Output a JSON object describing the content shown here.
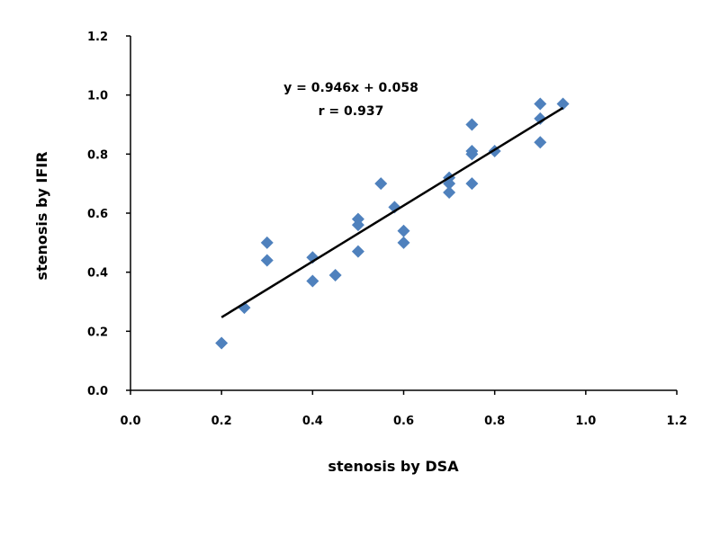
{
  "chart_data": {
    "type": "scatter",
    "title": "",
    "xlabel": "stenosis by DSA",
    "ylabel": "stenosis by IFIR",
    "xlim": [
      0,
      1.2
    ],
    "ylim": [
      0,
      1.2
    ],
    "xticks": [
      "0.0",
      "0.2",
      "0.4",
      "0.6",
      "0.8",
      "1.0",
      "1.2"
    ],
    "yticks": [
      "0.0",
      "0.2",
      "0.4",
      "0.6",
      "0.8",
      "1.0",
      "1.2"
    ],
    "grid": false,
    "marker_color": "#4f81bd",
    "points": [
      [
        0.2,
        0.16
      ],
      [
        0.25,
        0.28
      ],
      [
        0.3,
        0.5
      ],
      [
        0.3,
        0.44
      ],
      [
        0.4,
        0.45
      ],
      [
        0.4,
        0.37
      ],
      [
        0.45,
        0.39
      ],
      [
        0.5,
        0.58
      ],
      [
        0.5,
        0.56
      ],
      [
        0.5,
        0.47
      ],
      [
        0.55,
        0.7
      ],
      [
        0.58,
        0.62
      ],
      [
        0.6,
        0.54
      ],
      [
        0.6,
        0.5
      ],
      [
        0.7,
        0.72
      ],
      [
        0.7,
        0.7
      ],
      [
        0.7,
        0.67
      ],
      [
        0.75,
        0.9
      ],
      [
        0.75,
        0.81
      ],
      [
        0.75,
        0.8
      ],
      [
        0.75,
        0.7
      ],
      [
        0.8,
        0.81
      ],
      [
        0.9,
        0.97
      ],
      [
        0.9,
        0.92
      ],
      [
        0.9,
        0.84
      ],
      [
        0.95,
        0.97
      ]
    ],
    "trendline": {
      "slope": 0.946,
      "intercept": 0.058,
      "x_range": [
        0.2,
        0.95
      ]
    },
    "annotations": [
      "y = 0.946x + 0.058",
      "r = 0.937"
    ]
  }
}
